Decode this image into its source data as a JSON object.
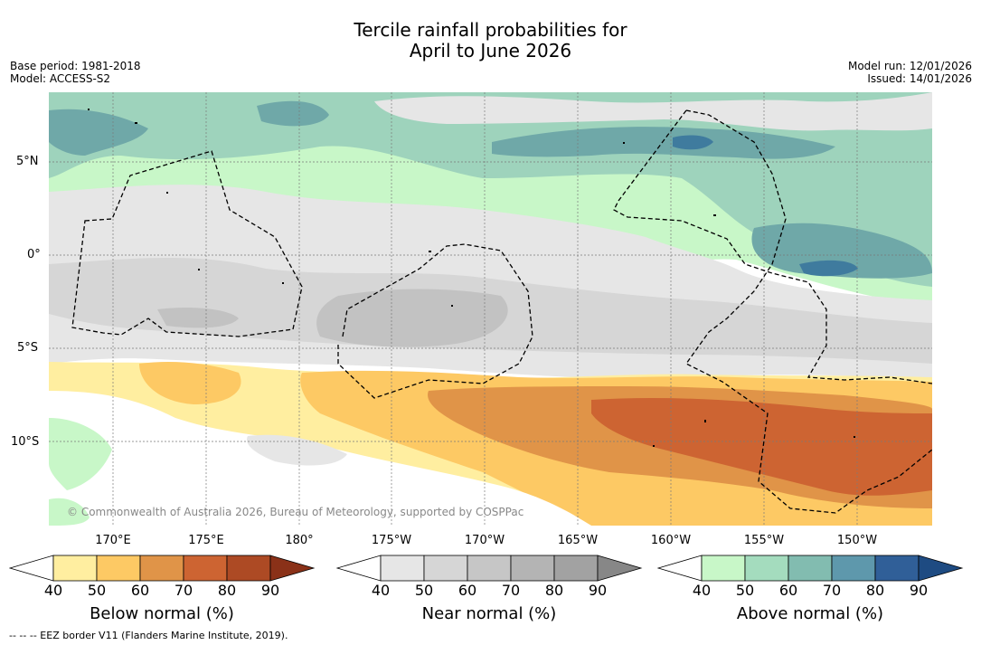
{
  "title_line1": "Tercile rainfall probabilities for",
  "title_line2": "April to June 2026",
  "base_period": "Base period: 1981-2018",
  "model": "Model: ACCESS-S2",
  "model_run": "Model run: 12/01/2026",
  "issued": "Issued: 14/01/2026",
  "copyright": "© Commonwealth of Australia 2026, Bureau of Meteorology, supported by COSPPac",
  "footnote": "--  --  -- EEZ border V11 (Flanders Marine Institute, 2019).",
  "lat_labels": [
    "5°N",
    "0°",
    "5°S",
    "10°S"
  ],
  "lon_labels": [
    "170°E",
    "175°E",
    "180°",
    "175°W",
    "170°W",
    "165°W",
    "160°W",
    "155°W",
    "150°W"
  ],
  "colorbars": [
    {
      "title": "Below normal (%)",
      "ticks": [
        "40",
        "50",
        "60",
        "70",
        "80",
        "90"
      ],
      "colors": [
        "#ffeea0",
        "#fdc964",
        "#e09448",
        "#cd6432",
        "#ad4a24",
        "#8a3118"
      ]
    },
    {
      "title": "Near normal (%)",
      "ticks": [
        "40",
        "50",
        "60",
        "70",
        "80",
        "90"
      ],
      "colors": [
        "#e6e6e6",
        "#d6d6d6",
        "#c6c6c6",
        "#b4b4b4",
        "#a2a2a2",
        "#878787"
      ]
    },
    {
      "title": "Above normal (%)",
      "ticks": [
        "40",
        "50",
        "60",
        "70",
        "80",
        "90"
      ],
      "colors": [
        "#c8f7c8",
        "#a4dcbe",
        "#82bcb0",
        "#5e98ac",
        "#305f98",
        "#1e4b82"
      ]
    }
  ],
  "colors": {
    "below_40": "#ffeea0",
    "below_50": "#fdc964",
    "below_60": "#e09448",
    "below_70": "#cd6432",
    "near_40": "#e6e6e6",
    "near_50": "#d6d6d6",
    "near_60": "#c2c2c2",
    "above_40": "#c8f7c8",
    "above_50": "#9ed3bc",
    "above_60": "#6fa8a8",
    "above_70": "#3f7b9e"
  }
}
